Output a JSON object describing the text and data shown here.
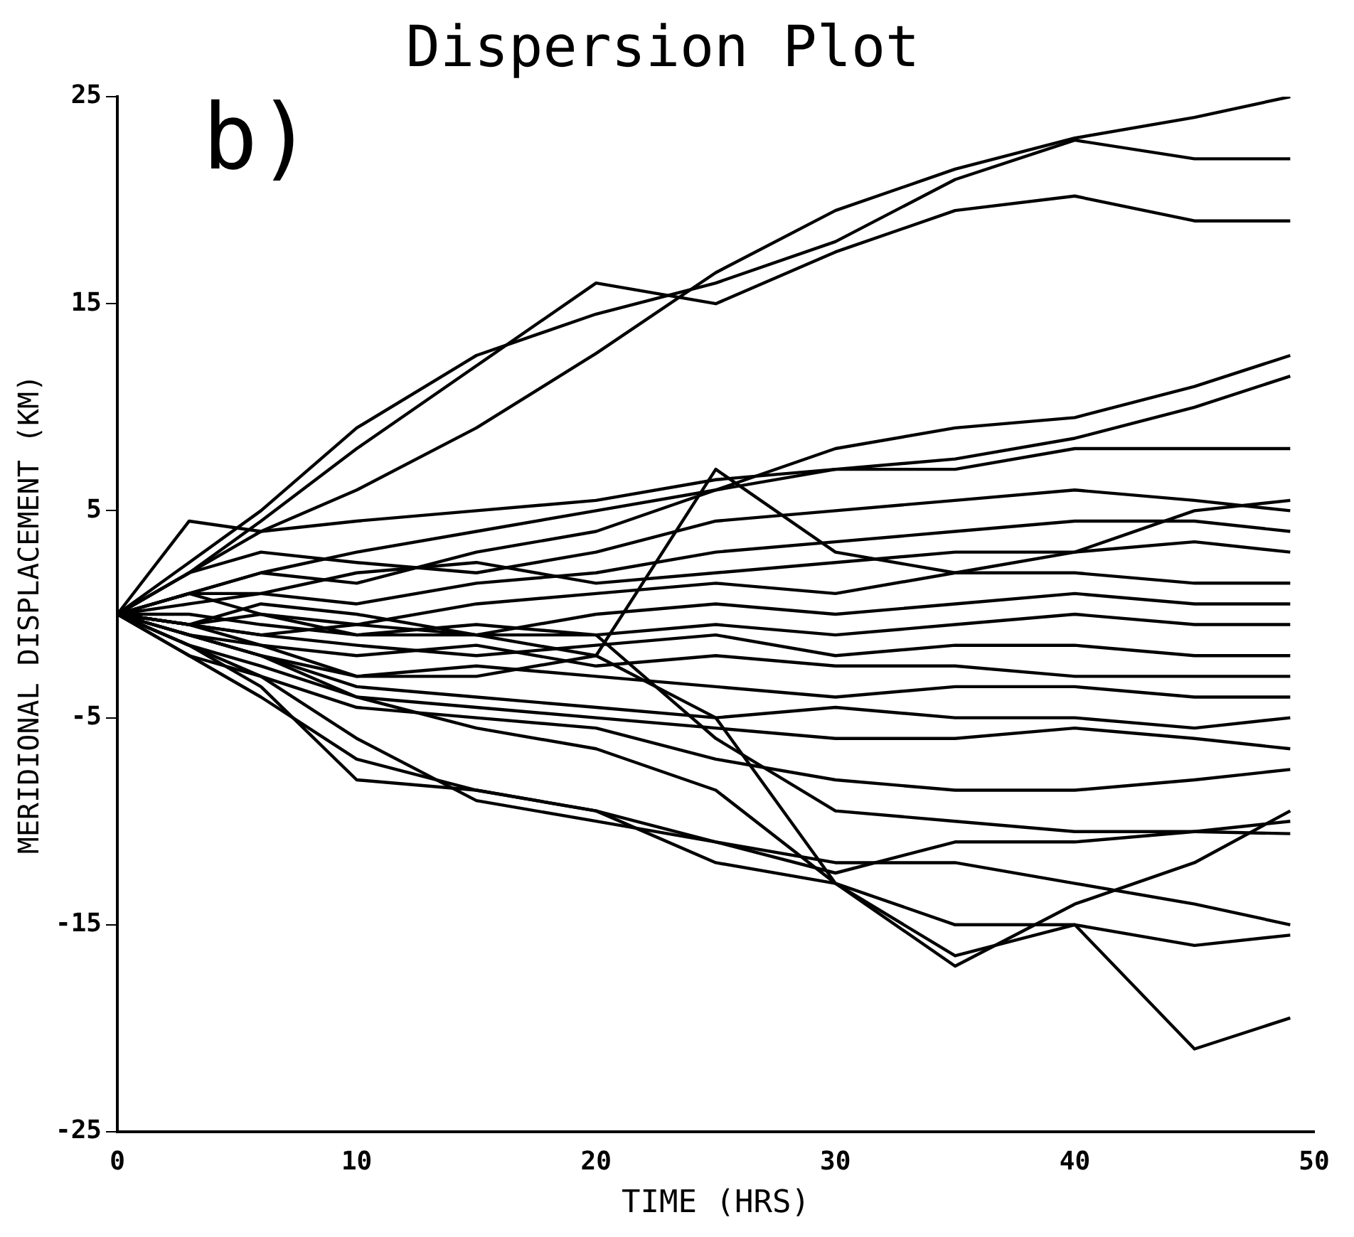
{
  "chart_data": {
    "type": "line",
    "title": "Dispersion Plot",
    "xlabel": "TIME (HRS)",
    "ylabel": "MERIDIONAL DISPLACEMENT (KM)",
    "annotations": [
      "b)"
    ],
    "x": [
      0,
      3,
      6,
      10,
      15,
      20,
      25,
      30,
      35,
      40,
      45,
      49
    ],
    "xlim": [
      0,
      50
    ],
    "xticks": [
      0,
      10,
      20,
      30,
      40,
      50
    ],
    "ylim": [
      -25,
      25
    ],
    "yticks": [
      -25,
      -15,
      -5,
      5,
      15,
      25
    ],
    "grid": false,
    "legend": false,
    "marker": "none",
    "line_style": "solid",
    "series": [
      {
        "color": "#000000",
        "values": [
          0,
          2,
          4,
          6,
          9,
          12.6,
          16.5,
          19.5,
          21.5,
          23,
          24,
          25
        ]
      },
      {
        "color": "#000000",
        "values": [
          0,
          2.5,
          5,
          9,
          12.5,
          14.5,
          16,
          18,
          21,
          22.9,
          22,
          22
        ]
      },
      {
        "color": "#000000",
        "values": [
          0,
          2,
          4.5,
          8,
          12,
          16,
          15,
          17.5,
          19.5,
          20.2,
          19,
          19
        ]
      },
      {
        "color": "#000000",
        "values": [
          0,
          1,
          2,
          3,
          4,
          5,
          6,
          8,
          9,
          9.5,
          11,
          12.5
        ]
      },
      {
        "color": "#000000",
        "values": [
          0,
          4.5,
          4,
          4.5,
          5,
          5.5,
          6.5,
          7,
          7,
          8,
          8,
          8
        ]
      },
      {
        "color": "#000000",
        "values": [
          0,
          1,
          2,
          1.5,
          3,
          4,
          6,
          7,
          7.5,
          8.5,
          10,
          11.5
        ]
      },
      {
        "color": "#000000",
        "values": [
          0,
          2,
          3,
          2.5,
          2,
          3,
          4.5,
          5,
          5.5,
          6,
          5.5,
          5
        ]
      },
      {
        "color": "#000000",
        "values": [
          0,
          1,
          1,
          0.5,
          1.5,
          2,
          3,
          3.5,
          4,
          4.5,
          4.5,
          4
        ]
      },
      {
        "color": "#000000",
        "values": [
          0,
          0.5,
          1,
          2,
          2.5,
          1.5,
          2,
          2.5,
          3,
          3,
          3.5,
          3
        ]
      },
      {
        "color": "#000000",
        "values": [
          0,
          1,
          0,
          -0.5,
          0.5,
          1,
          1.5,
          1,
          2,
          2,
          1.5,
          1.5
        ]
      },
      {
        "color": "#000000",
        "values": [
          0,
          -0.5,
          0.5,
          0,
          -1,
          0,
          0.5,
          0,
          0.5,
          1,
          0.5,
          0.5
        ]
      },
      {
        "color": "#000000",
        "values": [
          0,
          0,
          -0.5,
          -1,
          -0.5,
          -1,
          -0.5,
          -1,
          -0.5,
          0,
          -0.5,
          -0.5
        ]
      },
      {
        "color": "#000000",
        "values": [
          0,
          -0.5,
          -1,
          -1.5,
          -2,
          -1.5,
          -1,
          -2,
          -1.5,
          -1.5,
          -2,
          -2
        ]
      },
      {
        "color": "#000000",
        "values": [
          0,
          -1,
          -1.5,
          -2,
          -1.5,
          -2.5,
          -2,
          -2.5,
          -2.5,
          -3,
          -3,
          -3
        ]
      },
      {
        "color": "#000000",
        "values": [
          0,
          -1,
          -2,
          -3,
          -2.5,
          -3,
          -3.5,
          -4,
          -3.5,
          -3.5,
          -4,
          -4
        ]
      },
      {
        "color": "#000000",
        "values": [
          0,
          -1,
          -2,
          -3.5,
          -4,
          -4.5,
          -5,
          -4.5,
          -5,
          -5,
          -5.5,
          -5
        ]
      },
      {
        "color": "#000000",
        "values": [
          0,
          -1.5,
          -2.5,
          -4,
          -4.5,
          -5,
          -5.5,
          -6,
          -6,
          -5.5,
          -6,
          -6.5
        ]
      },
      {
        "color": "#000000",
        "values": [
          0,
          -2,
          -3,
          -4.5,
          -5,
          -5.5,
          -7,
          -8,
          -8.5,
          -8.5,
          -8,
          -7.5
        ]
      },
      {
        "color": "#000000",
        "values": [
          0,
          -1.5,
          -3,
          -6,
          -9,
          -10,
          -11,
          -12.5,
          -11,
          -11,
          -10.5,
          -10
        ]
      },
      {
        "color": "#000000",
        "values": [
          0,
          -2,
          -4,
          -7,
          -8.5,
          -9.5,
          -11,
          -12,
          -12,
          -13,
          -14,
          -15
        ]
      },
      {
        "color": "#000000",
        "values": [
          0,
          -1,
          -2,
          -4,
          -5.5,
          -6.5,
          -8.5,
          -13,
          -16.5,
          -15,
          -16,
          -15.5
        ]
      },
      {
        "color": "#000000",
        "values": [
          0,
          -0.5,
          -1.5,
          -3,
          -3,
          -2,
          -5,
          -13,
          -17,
          -14,
          -12,
          -9.5
        ]
      },
      {
        "color": "#000000",
        "values": [
          0,
          -1.5,
          -3.5,
          -8,
          -8.5,
          -9.5,
          -12,
          -13,
          -15,
          -15,
          -21,
          -19.5
        ]
      },
      {
        "color": "#000000",
        "values": [
          0,
          -0.5,
          0,
          -1,
          -1,
          -1,
          -6,
          -9.5,
          -10,
          -10.5,
          -10.5,
          -10.6
        ]
      },
      {
        "color": "#000000",
        "values": [
          0,
          -0.5,
          -1,
          -0.5,
          -1,
          -2,
          7,
          3,
          2,
          3,
          5,
          5.5
        ]
      }
    ]
  }
}
